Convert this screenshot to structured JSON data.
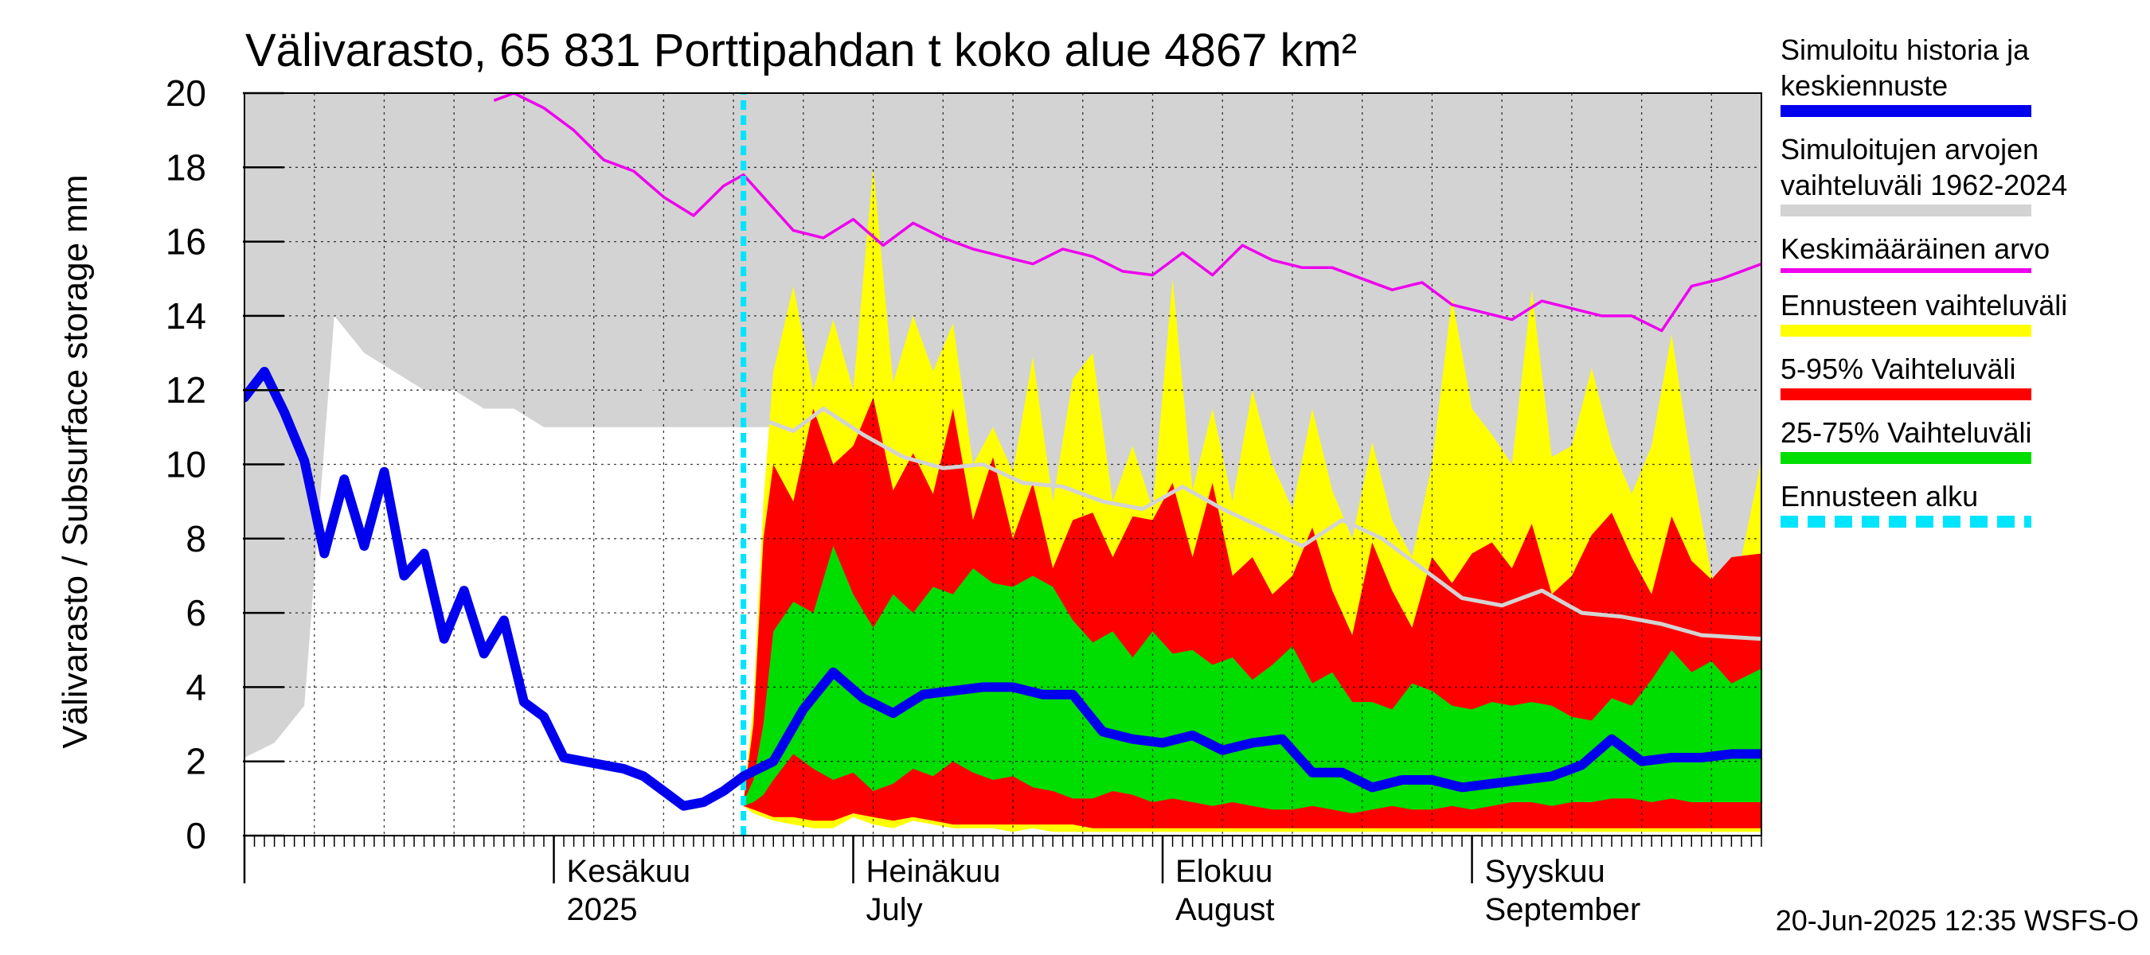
{
  "chart_data": {
    "type": "area",
    "title": "Välivarasto, 65 831 Porttipahdan t koko alue 4867 km²",
    "ylabel": "Välivarasto / Subsurface storage  mm",
    "ylim": [
      0,
      20
    ],
    "yticks": [
      0,
      2,
      4,
      6,
      8,
      10,
      12,
      14,
      16,
      18,
      20
    ],
    "xlim": [
      "2025-05-01",
      "2025-09-30"
    ],
    "forecast_start": "2025-06-20",
    "month_labels": [
      {
        "date": "2025-06-01",
        "line1": "Kesäkuu",
        "line2": "2025"
      },
      {
        "date": "2025-07-01",
        "line1": "Heinäkuu",
        "line2": "July"
      },
      {
        "date": "2025-08-01",
        "line1": "Elokuu",
        "line2": "August"
      },
      {
        "date": "2025-09-01",
        "line1": "Syyskuu",
        "line2": "September"
      }
    ],
    "grid": true,
    "legend_position": "right",
    "colors": {
      "history": "#0000ee",
      "range": "#d3d3d3",
      "mean": "#ee00ee",
      "forecast_range": "#ffff00",
      "p5_95": "#ff0000",
      "p25_75": "#00dd00",
      "forecast_start": "#00e5ff",
      "median_forecast": "#d3d3d3"
    },
    "series": [
      {
        "name": "Simuloitu historia ja keskiennuste",
        "x": [
          "2025-05-01",
          "2025-05-03",
          "2025-05-05",
          "2025-05-07",
          "2025-05-09",
          "2025-05-11",
          "2025-05-13",
          "2025-05-15",
          "2025-05-17",
          "2025-05-19",
          "2025-05-21",
          "2025-05-23",
          "2025-05-25",
          "2025-05-27",
          "2025-05-29",
          "2025-05-31",
          "2025-06-02",
          "2025-06-04",
          "2025-06-06",
          "2025-06-08",
          "2025-06-10",
          "2025-06-12",
          "2025-06-14",
          "2025-06-16",
          "2025-06-18",
          "2025-06-20",
          "2025-06-23",
          "2025-06-26",
          "2025-06-29",
          "2025-07-02",
          "2025-07-05",
          "2025-07-08",
          "2025-07-11",
          "2025-07-14",
          "2025-07-17",
          "2025-07-20",
          "2025-07-23",
          "2025-07-26",
          "2025-07-29",
          "2025-08-01",
          "2025-08-04",
          "2025-08-07",
          "2025-08-10",
          "2025-08-13",
          "2025-08-16",
          "2025-08-19",
          "2025-08-22",
          "2025-08-25",
          "2025-08-28",
          "2025-08-31",
          "2025-09-03",
          "2025-09-06",
          "2025-09-09",
          "2025-09-12",
          "2025-09-15",
          "2025-09-18",
          "2025-09-21",
          "2025-09-24",
          "2025-09-27",
          "2025-09-30"
        ],
        "y": [
          11.8,
          12.5,
          11.4,
          10.1,
          7.6,
          9.6,
          7.8,
          9.8,
          7.0,
          7.6,
          5.3,
          6.6,
          4.9,
          5.8,
          3.6,
          3.2,
          2.1,
          2.0,
          1.9,
          1.8,
          1.6,
          1.2,
          0.8,
          0.9,
          1.2,
          1.6,
          2.0,
          3.4,
          4.4,
          3.7,
          3.3,
          3.8,
          3.9,
          4.0,
          4.0,
          3.8,
          3.8,
          2.8,
          2.6,
          2.5,
          2.7,
          2.3,
          2.5,
          2.6,
          1.7,
          1.7,
          1.3,
          1.5,
          1.5,
          1.3,
          1.4,
          1.5,
          1.6,
          1.9,
          2.6,
          2.0,
          2.1,
          2.1,
          2.2,
          2.2
        ]
      },
      {
        "name": "Simuloitujen arvojen vaihteluväli 1962-2024",
        "x": [
          "2025-05-01",
          "2025-05-04",
          "2025-05-07",
          "2025-05-10",
          "2025-05-13",
          "2025-05-16",
          "2025-05-19",
          "2025-05-22",
          "2025-05-25",
          "2025-05-28",
          "2025-05-31",
          "2025-06-03",
          "2025-06-06",
          "2025-06-09",
          "2025-06-12",
          "2025-06-15",
          "2025-06-18",
          "2025-06-21",
          "2025-06-25",
          "2025-06-30",
          "2025-07-05",
          "2025-07-10",
          "2025-07-15",
          "2025-07-20",
          "2025-07-25",
          "2025-07-30",
          "2025-08-04",
          "2025-08-09",
          "2025-08-14",
          "2025-08-19",
          "2025-08-24",
          "2025-08-29",
          "2025-09-03",
          "2025-09-08",
          "2025-09-13",
          "2025-09-18",
          "2025-09-23",
          "2025-09-30"
        ],
        "low": [
          2.1,
          2.5,
          3.5,
          14.0,
          13.0,
          12.5,
          12.0,
          12.0,
          11.5,
          11.5,
          11.0,
          11.0,
          11.0,
          11.0,
          11.0,
          11.0,
          11.0,
          11.0,
          11.0,
          10.5,
          10.5,
          10.0,
          9.5,
          9.0,
          9.0,
          9.0,
          8.5,
          8.0,
          7.5,
          7.0,
          6.5,
          6.5,
          6.0,
          5.5,
          5.0,
          4.5,
          4.0,
          4.0
        ],
        "high": [
          20,
          20,
          20,
          20,
          20,
          20,
          20,
          20,
          20,
          20,
          20,
          20,
          20,
          20,
          20,
          20,
          20,
          20,
          20,
          20,
          20,
          20,
          20,
          20,
          20,
          20,
          20,
          20,
          20,
          20,
          20,
          20,
          20,
          20,
          20,
          20,
          20,
          20
        ]
      },
      {
        "name": "Keskimääräinen arvo",
        "x": [
          "2025-05-26",
          "2025-05-28",
          "2025-05-31",
          "2025-06-03",
          "2025-06-06",
          "2025-06-09",
          "2025-06-12",
          "2025-06-15",
          "2025-06-18",
          "2025-06-20",
          "2025-06-22",
          "2025-06-25",
          "2025-06-28",
          "2025-07-01",
          "2025-07-04",
          "2025-07-07",
          "2025-07-10",
          "2025-07-13",
          "2025-07-16",
          "2025-07-19",
          "2025-07-22",
          "2025-07-25",
          "2025-07-28",
          "2025-07-31",
          "2025-08-03",
          "2025-08-06",
          "2025-08-09",
          "2025-08-12",
          "2025-08-15",
          "2025-08-18",
          "2025-08-21",
          "2025-08-24",
          "2025-08-27",
          "2025-08-30",
          "2025-09-02",
          "2025-09-05",
          "2025-09-08",
          "2025-09-11",
          "2025-09-14",
          "2025-09-17",
          "2025-09-20",
          "2025-09-23",
          "2025-09-26",
          "2025-09-30"
        ],
        "y": [
          19.8,
          20.0,
          19.6,
          19.0,
          18.2,
          17.9,
          17.2,
          16.7,
          17.5,
          17.8,
          17.2,
          16.3,
          16.1,
          16.6,
          15.9,
          16.5,
          16.1,
          15.8,
          15.6,
          15.4,
          15.8,
          15.6,
          15.2,
          15.1,
          15.7,
          15.1,
          15.9,
          15.5,
          15.3,
          15.3,
          15.0,
          14.7,
          14.9,
          14.3,
          14.1,
          13.9,
          14.4,
          14.2,
          14.0,
          14.0,
          13.6,
          14.8,
          15.0,
          15.4
        ]
      },
      {
        "name": "Ennusteen vaihteluväli",
        "x": [
          "2025-06-20",
          "2025-06-21",
          "2025-06-22",
          "2025-06-23",
          "2025-06-25",
          "2025-06-27",
          "2025-06-29",
          "2025-07-01",
          "2025-07-03",
          "2025-07-05",
          "2025-07-07",
          "2025-07-09",
          "2025-07-11",
          "2025-07-13",
          "2025-07-15",
          "2025-07-17",
          "2025-07-19",
          "2025-07-21",
          "2025-07-23",
          "2025-07-25",
          "2025-07-27",
          "2025-07-29",
          "2025-07-31",
          "2025-08-02",
          "2025-08-04",
          "2025-08-06",
          "2025-08-08",
          "2025-08-10",
          "2025-08-12",
          "2025-08-14",
          "2025-08-16",
          "2025-08-18",
          "2025-08-20",
          "2025-08-22",
          "2025-08-24",
          "2025-08-26",
          "2025-08-28",
          "2025-08-30",
          "2025-09-01",
          "2025-09-03",
          "2025-09-05",
          "2025-09-07",
          "2025-09-09",
          "2025-09-11",
          "2025-09-13",
          "2025-09-15",
          "2025-09-17",
          "2025-09-19",
          "2025-09-21",
          "2025-09-23",
          "2025-09-25",
          "2025-09-27",
          "2025-09-30"
        ],
        "low": [
          0.8,
          0.6,
          0.5,
          0.4,
          0.3,
          0.2,
          0.2,
          0.5,
          0.3,
          0.2,
          0.4,
          0.3,
          0.2,
          0.2,
          0.2,
          0.1,
          0.2,
          0.1,
          0.1,
          0.1,
          0.1,
          0.1,
          0.1,
          0.1,
          0.1,
          0.1,
          0.1,
          0.1,
          0.1,
          0.1,
          0.1,
          0.1,
          0.1,
          0.1,
          0.1,
          0.1,
          0.1,
          0.1,
          0.1,
          0.1,
          0.1,
          0.1,
          0.1,
          0.1,
          0.1,
          0.1,
          0.1,
          0.1,
          0.1,
          0.1,
          0.1,
          0.1,
          0.1
        ],
        "high": [
          0.9,
          3.5,
          9.0,
          12.5,
          14.8,
          12.0,
          13.9,
          12.0,
          18.0,
          12.2,
          14.0,
          12.5,
          13.8,
          10.0,
          11.0,
          9.8,
          12.9,
          9.0,
          12.3,
          13.0,
          9.0,
          10.5,
          8.8,
          15.0,
          9.3,
          11.5,
          9.0,
          12.0,
          10.0,
          8.8,
          11.5,
          9.3,
          8.0,
          10.6,
          8.5,
          7.5,
          10.0,
          14.5,
          11.5,
          10.8,
          10.0,
          14.7,
          10.2,
          10.5,
          12.6,
          10.5,
          9.2,
          10.5,
          13.5,
          10.0,
          7.0,
          6.2,
          10.1
        ]
      },
      {
        "name": "5-95% Vaihteluväli",
        "x": [
          "2025-06-20",
          "2025-06-21",
          "2025-06-22",
          "2025-06-23",
          "2025-06-25",
          "2025-06-27",
          "2025-06-29",
          "2025-07-01",
          "2025-07-03",
          "2025-07-05",
          "2025-07-07",
          "2025-07-09",
          "2025-07-11",
          "2025-07-13",
          "2025-07-15",
          "2025-07-17",
          "2025-07-19",
          "2025-07-21",
          "2025-07-23",
          "2025-07-25",
          "2025-07-27",
          "2025-07-29",
          "2025-07-31",
          "2025-08-02",
          "2025-08-04",
          "2025-08-06",
          "2025-08-08",
          "2025-08-10",
          "2025-08-12",
          "2025-08-14",
          "2025-08-16",
          "2025-08-18",
          "2025-08-20",
          "2025-08-22",
          "2025-08-24",
          "2025-08-26",
          "2025-08-28",
          "2025-08-30",
          "2025-09-01",
          "2025-09-03",
          "2025-09-05",
          "2025-09-07",
          "2025-09-09",
          "2025-09-11",
          "2025-09-13",
          "2025-09-15",
          "2025-09-17",
          "2025-09-19",
          "2025-09-21",
          "2025-09-23",
          "2025-09-25",
          "2025-09-27",
          "2025-09-30"
        ],
        "low": [
          0.8,
          0.7,
          0.6,
          0.5,
          0.5,
          0.4,
          0.4,
          0.6,
          0.5,
          0.4,
          0.5,
          0.4,
          0.3,
          0.3,
          0.3,
          0.3,
          0.3,
          0.3,
          0.3,
          0.2,
          0.2,
          0.2,
          0.2,
          0.2,
          0.2,
          0.2,
          0.2,
          0.2,
          0.2,
          0.2,
          0.2,
          0.2,
          0.2,
          0.2,
          0.2,
          0.2,
          0.2,
          0.2,
          0.2,
          0.2,
          0.2,
          0.2,
          0.2,
          0.2,
          0.2,
          0.2,
          0.2,
          0.2,
          0.2,
          0.2,
          0.2,
          0.2,
          0.2
        ],
        "high": [
          0.9,
          3.0,
          8.0,
          10.0,
          9.0,
          11.5,
          10.0,
          10.5,
          11.8,
          9.3,
          10.3,
          9.2,
          11.5,
          8.5,
          10.2,
          8.0,
          9.5,
          7.2,
          8.5,
          8.7,
          7.5,
          8.6,
          8.5,
          9.5,
          7.5,
          9.5,
          7.0,
          7.5,
          6.5,
          7.0,
          8.3,
          6.6,
          5.4,
          7.9,
          6.6,
          5.6,
          7.5,
          6.8,
          7.6,
          7.9,
          7.2,
          8.4,
          6.5,
          7.0,
          8.1,
          8.7,
          7.5,
          6.5,
          8.6,
          7.4,
          6.9,
          7.5,
          7.6
        ]
      },
      {
        "name": "25-75% Vaihteluväli",
        "x": [
          "2025-06-20",
          "2025-06-21",
          "2025-06-22",
          "2025-06-23",
          "2025-06-25",
          "2025-06-27",
          "2025-06-29",
          "2025-07-01",
          "2025-07-03",
          "2025-07-05",
          "2025-07-07",
          "2025-07-09",
          "2025-07-11",
          "2025-07-13",
          "2025-07-15",
          "2025-07-17",
          "2025-07-19",
          "2025-07-21",
          "2025-07-23",
          "2025-07-25",
          "2025-07-27",
          "2025-07-29",
          "2025-07-31",
          "2025-08-02",
          "2025-08-04",
          "2025-08-06",
          "2025-08-08",
          "2025-08-10",
          "2025-08-12",
          "2025-08-14",
          "2025-08-16",
          "2025-08-18",
          "2025-08-20",
          "2025-08-22",
          "2025-08-24",
          "2025-08-26",
          "2025-08-28",
          "2025-08-30",
          "2025-09-01",
          "2025-09-03",
          "2025-09-05",
          "2025-09-07",
          "2025-09-09",
          "2025-09-11",
          "2025-09-13",
          "2025-09-15",
          "2025-09-17",
          "2025-09-19",
          "2025-09-21",
          "2025-09-23",
          "2025-09-25",
          "2025-09-27",
          "2025-09-30"
        ],
        "low": [
          0.8,
          0.9,
          1.1,
          1.5,
          2.2,
          1.8,
          1.5,
          1.7,
          1.2,
          1.4,
          1.8,
          1.6,
          2.0,
          1.7,
          1.5,
          1.6,
          1.3,
          1.2,
          1.0,
          1.0,
          1.2,
          1.1,
          0.9,
          1.0,
          0.9,
          0.8,
          0.9,
          0.8,
          0.7,
          0.7,
          0.8,
          0.7,
          0.6,
          0.7,
          0.8,
          0.7,
          0.7,
          0.8,
          0.7,
          0.8,
          0.9,
          0.9,
          0.8,
          0.9,
          0.9,
          1.0,
          1.0,
          0.9,
          1.0,
          0.9,
          0.9,
          0.9,
          0.9
        ],
        "high": [
          0.9,
          1.5,
          3.0,
          5.5,
          6.3,
          6.0,
          7.8,
          6.5,
          5.6,
          6.5,
          6.0,
          6.7,
          6.5,
          7.2,
          6.8,
          6.7,
          7.0,
          6.7,
          5.8,
          5.2,
          5.5,
          4.8,
          5.5,
          4.9,
          5.0,
          4.6,
          4.8,
          4.2,
          4.6,
          5.1,
          4.1,
          4.4,
          3.6,
          3.6,
          3.4,
          4.1,
          3.9,
          3.5,
          3.4,
          3.6,
          3.5,
          3.6,
          3.5,
          3.2,
          3.1,
          3.7,
          3.5,
          4.2,
          5.0,
          4.4,
          4.7,
          4.1,
          4.5
        ]
      },
      {
        "name": "Ennusteen alku",
        "x": [
          "2025-06-20",
          "2025-06-20"
        ],
        "y": [
          0,
          20
        ]
      },
      {
        "x": [
          "2025-06-10",
          "2025-06-14",
          "2025-06-18",
          "2025-06-21",
          "2025-06-25",
          "2025-06-28",
          "2025-07-02",
          "2025-07-06",
          "2025-07-10",
          "2025-07-14",
          "2025-07-18",
          "2025-07-22",
          "2025-07-26",
          "2025-07-30",
          "2025-08-03",
          "2025-08-07",
          "2025-08-11",
          "2025-08-15",
          "2025-08-19",
          "2025-08-23",
          "2025-08-27",
          "2025-08-31",
          "2025-09-04",
          "2025-09-08",
          "2025-09-12",
          "2025-09-16",
          "2025-09-20",
          "2025-09-24",
          "2025-09-30"
        ],
        "y": [
          12.0,
          12.2,
          11.7,
          11.3,
          10.9,
          11.5,
          10.8,
          10.2,
          9.9,
          10.0,
          9.5,
          9.4,
          9.0,
          8.8,
          9.4,
          8.8,
          8.3,
          7.8,
          8.5,
          8.0,
          7.2,
          6.4,
          6.2,
          6.6,
          6.0,
          5.9,
          5.7,
          5.4,
          5.3
        ]
      }
    ]
  },
  "texts": {
    "title": "Välivarasto, 65 831 Porttipahdan t koko alue 4867 km²",
    "ylabel": "Välivarasto / Subsurface storage  mm",
    "footer": "20-Jun-2025 12:35 WSFS-O"
  },
  "legend": [
    {
      "label": "Simuloitu historia ja keskiennuste",
      "color": "#0000ee",
      "lines": [
        "Simuloitu historia ja",
        "keskiennuste"
      ],
      "dashed": false,
      "thick": true
    },
    {
      "label": "Simuloitujen arvojen vaihteluväli 1962-2024",
      "color": "#d3d3d3",
      "lines": [
        "Simuloitujen arvojen",
        "vaihteluväli 1962-2024"
      ],
      "dashed": false,
      "thick": true
    },
    {
      "label": "Keskimääräinen arvo",
      "color": "#ee00ee",
      "lines": [
        "Keskimääräinen arvo"
      ],
      "dashed": false,
      "thick": false
    },
    {
      "label": "Ennusteen vaihteluväli",
      "color": "#ffff00",
      "lines": [
        "Ennusteen vaihteluväli"
      ],
      "dashed": false,
      "thick": true
    },
    {
      "label": "5-95% Vaihteluväli",
      "color": "#ff0000",
      "lines": [
        "5-95% Vaihteluväli"
      ],
      "dashed": false,
      "thick": true
    },
    {
      "label": "25-75% Vaihteluväli",
      "color": "#00dd00",
      "lines": [
        "25-75% Vaihteluväli"
      ],
      "dashed": false,
      "thick": true
    },
    {
      "label": "Ennusteen alku",
      "color": "#00e5ff",
      "lines": [
        "Ennusteen alku"
      ],
      "dashed": true,
      "thick": true
    }
  ]
}
